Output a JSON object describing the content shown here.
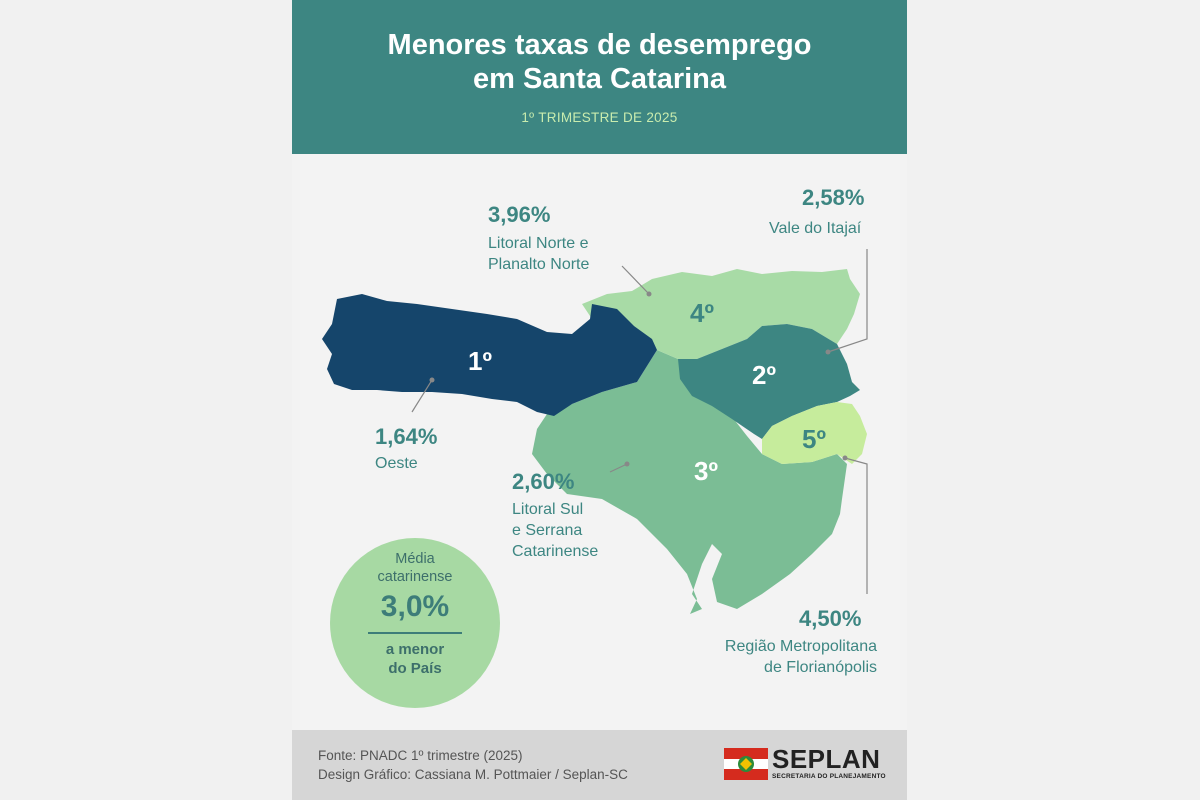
{
  "header": {
    "title_line1": "Menores taxas de desemprego",
    "title_line2": "em Santa Catarina",
    "subtitle": "1º TRIMESTRE DE 2025"
  },
  "regions": [
    {
      "rank": "1º",
      "pct": "1,64%",
      "name": "Oeste",
      "color": "#15456b"
    },
    {
      "rank": "2º",
      "pct": "2,58%",
      "name": "Vale do Itajaí",
      "color": "#3d8682"
    },
    {
      "rank": "3º",
      "pct": "2,60%",
      "name_lines": [
        "Litoral Sul",
        "e Serrana",
        "Catarinense"
      ],
      "color": "#7bbd95"
    },
    {
      "rank": "4º",
      "pct": "3,96%",
      "name_lines": [
        "Litoral Norte e",
        "Planalto Norte"
      ],
      "color": "#a8dba6"
    },
    {
      "rank": "5º",
      "pct": "4,50%",
      "name_lines": [
        "Região Metropolitana",
        "de Florianópolis"
      ],
      "color": "#c6ec9c"
    }
  ],
  "average": {
    "label_line1": "Média",
    "label_line2": "catarinense",
    "value": "3,0%",
    "note_line1": "a menor",
    "note_line2": "do País"
  },
  "footer": {
    "source": "Fonte: PNADC 1º trimestre (2025)",
    "credit": "Design Gráfico: Cassiana M. Pottmaier / Seplan-SC",
    "logo_name": "SEPLAN",
    "logo_sub": "SECRETARIA DO PLANEJAMENTO"
  },
  "colors": {
    "header_bg": "#3d8682",
    "subtitle": "#c9ecae",
    "accent_text": "#3d8682",
    "badge_bg": "#a7d9a3"
  }
}
